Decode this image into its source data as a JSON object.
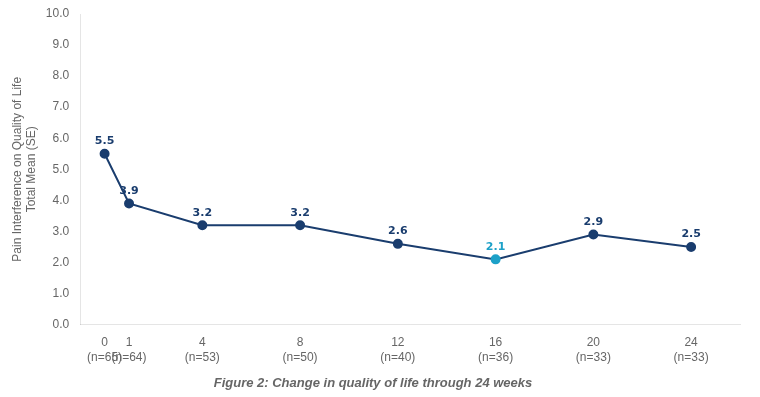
{
  "chart_data": {
    "type": "line",
    "title": "Figure 2: Change in quality of life through 24 weeks",
    "ylabel": "Pain Interference on Quality of Life\nTotal Mean (SE)",
    "x": [
      0,
      1,
      4,
      8,
      12,
      16,
      20,
      24
    ],
    "values": [
      5.5,
      3.9,
      3.2,
      3.2,
      2.6,
      2.1,
      2.9,
      2.5
    ],
    "color": "#1a3d6e",
    "colors": [
      "#1a3d6e",
      "#1a3d6e",
      "#1a3d6e",
      "#1a3d6e",
      "#1a3d6e",
      "#1da1c8",
      "#1a3d6e",
      "#1a3d6e"
    ],
    "marker": "circle",
    "data_labels": true,
    "xlim": [
      -1.0,
      26.0
    ],
    "xticks": [
      {
        "value": 0,
        "label": "0\n(n=65)"
      },
      {
        "value": 1,
        "label": "1\n(n=64)"
      },
      {
        "value": 4,
        "label": "4\n(n=53)"
      },
      {
        "value": 8,
        "label": "8\n(n=50)"
      },
      {
        "value": 12,
        "label": "12\n(n=40)"
      },
      {
        "value": 16,
        "label": "16\n(n=36)"
      },
      {
        "value": 20,
        "label": "20\n(n=33)"
      },
      {
        "value": 24,
        "label": "24\n(n=33)"
      }
    ],
    "ylim": [
      0.0,
      10.0
    ],
    "yticks": [
      {
        "value": 0,
        "label": "0.0"
      },
      {
        "value": 1,
        "label": "1.0"
      },
      {
        "value": 2,
        "label": "2.0"
      },
      {
        "value": 3,
        "label": "3.0"
      },
      {
        "value": 4,
        "label": "4.0"
      },
      {
        "value": 5,
        "label": "5.0"
      },
      {
        "value": 6,
        "label": "6.0"
      },
      {
        "value": 7,
        "label": "7.0"
      },
      {
        "value": 8,
        "label": "8.0"
      },
      {
        "value": 9,
        "label": "9.0"
      },
      {
        "value": 10,
        "label": "10.0"
      }
    ],
    "grid": false,
    "legend": false
  }
}
